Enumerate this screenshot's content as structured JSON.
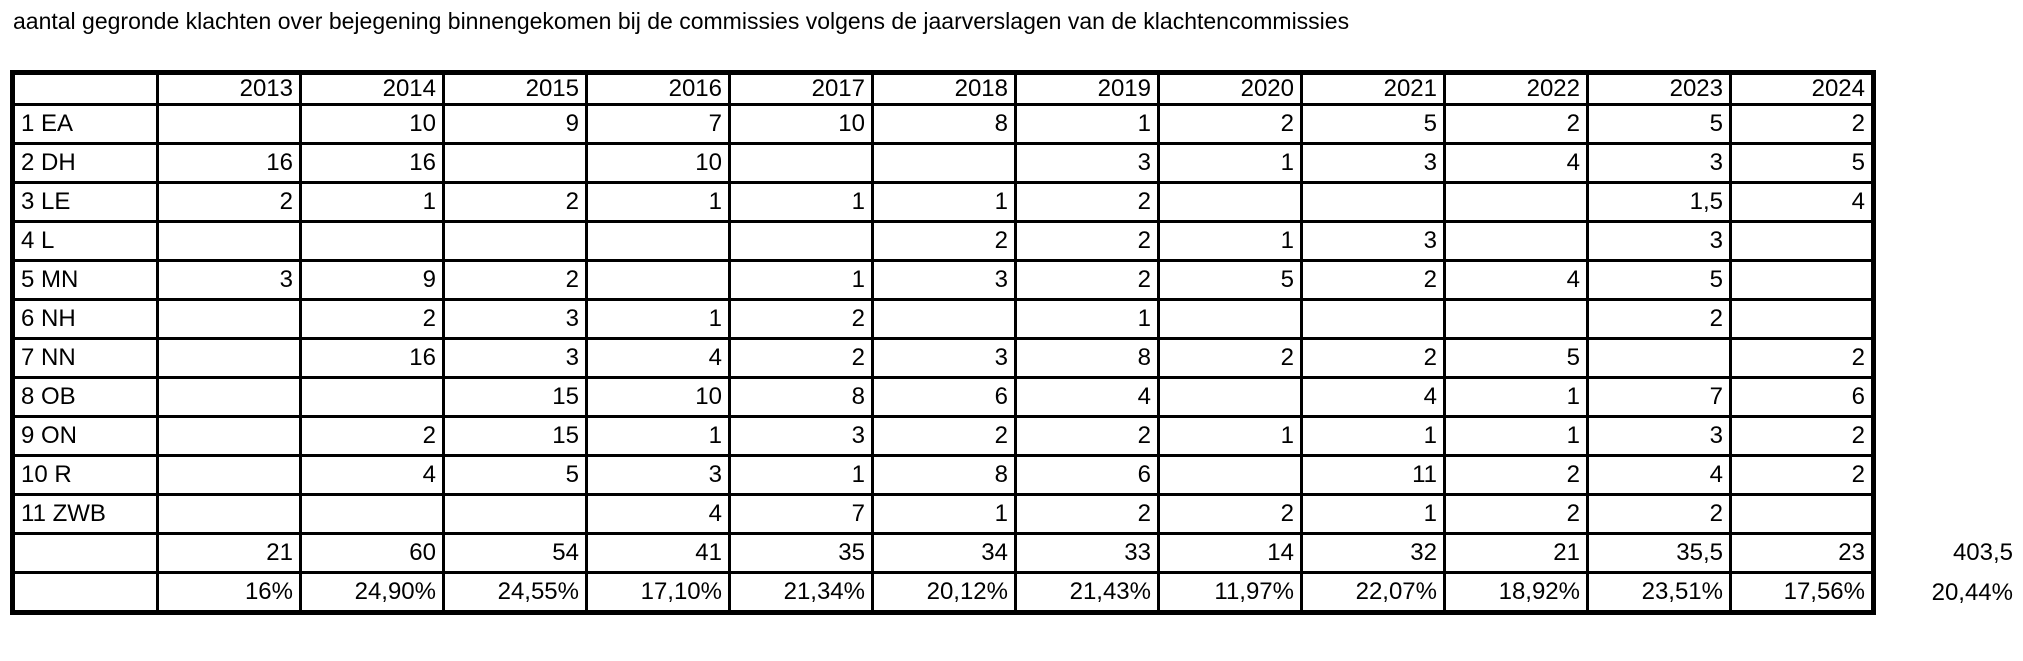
{
  "title": "aantal gegronde klachten over bejegening binnengekomen bij de commissies volgens de jaarverslagen van de klachtencommissies",
  "table": {
    "year_headers": [
      "2013",
      "2014",
      "2015",
      "2016",
      "2017",
      "2018",
      "2019",
      "2020",
      "2021",
      "2022",
      "2023",
      "2024"
    ],
    "rows": [
      {
        "label": "1 EA",
        "values": [
          "",
          "10",
          "9",
          "7",
          "10",
          "8",
          "1",
          "2",
          "5",
          "2",
          "5",
          "2"
        ]
      },
      {
        "label": "2 DH",
        "values": [
          "16",
          "16",
          "",
          "10",
          "",
          "",
          "3",
          "1",
          "3",
          "4",
          "3",
          "5"
        ]
      },
      {
        "label": "3 LE",
        "values": [
          "2",
          "1",
          "2",
          "1",
          "1",
          "1",
          "2",
          "",
          "",
          "",
          "1,5",
          "4"
        ]
      },
      {
        "label": "4 L",
        "values": [
          "",
          "",
          "",
          "",
          "",
          "2",
          "2",
          "1",
          "3",
          "",
          "3",
          ""
        ]
      },
      {
        "label": "5 MN",
        "values": [
          "3",
          "9",
          "2",
          "",
          "1",
          "3",
          "2",
          "5",
          "2",
          "4",
          "5",
          ""
        ]
      },
      {
        "label": "6 NH",
        "values": [
          "",
          "2",
          "3",
          "1",
          "2",
          "",
          "1",
          "",
          "",
          "",
          "2",
          ""
        ]
      },
      {
        "label": "7 NN",
        "values": [
          "",
          "16",
          "3",
          "4",
          "2",
          "3",
          "8",
          "2",
          "2",
          "5",
          "",
          "2"
        ]
      },
      {
        "label": "8 OB",
        "values": [
          "",
          "",
          "15",
          "10",
          "8",
          "6",
          "4",
          "",
          "4",
          "1",
          "7",
          "6"
        ]
      },
      {
        "label": "9 ON",
        "values": [
          "",
          "2",
          "15",
          "1",
          "3",
          "2",
          "2",
          "1",
          "1",
          "1",
          "3",
          "2"
        ]
      },
      {
        "label": "10 R",
        "values": [
          "",
          "4",
          "5",
          "3",
          "1",
          "8",
          "6",
          "",
          "11",
          "2",
          "4",
          "2"
        ]
      },
      {
        "label": "11 ZWB",
        "values": [
          "",
          "",
          "",
          "4",
          "7",
          "1",
          "2",
          "2",
          "1",
          "2",
          "2",
          ""
        ]
      }
    ],
    "totals": {
      "label": "",
      "values": [
        "21",
        "60",
        "54",
        "41",
        "35",
        "34",
        "33",
        "14",
        "32",
        "21",
        "35,5",
        "23"
      ],
      "grand_total": "403,5"
    },
    "percentages": {
      "label": "",
      "values": [
        "16%",
        "24,90%",
        "24,55%",
        "17,10%",
        "21,34%",
        "20,12%",
        "21,43%",
        "11,97%",
        "22,07%",
        "18,92%",
        "23,51%",
        "17,56%"
      ],
      "overall": "20,44%"
    }
  }
}
